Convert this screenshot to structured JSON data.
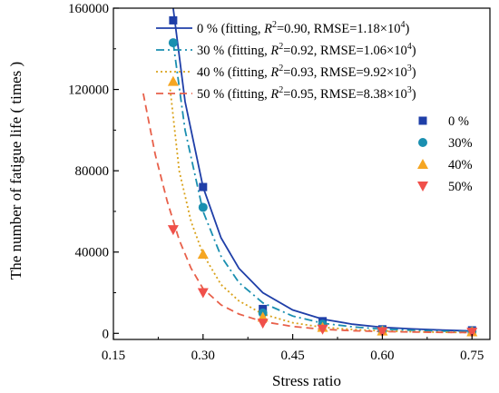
{
  "chart_data": {
    "type": "scatter",
    "xlabel": "Stress ratio",
    "ylabel": "The number of fatigue life ( times )",
    "xlim": [
      0.15,
      0.78
    ],
    "ylim": [
      -3000,
      160000
    ],
    "xticks": [
      0.15,
      0.3,
      0.45,
      0.6,
      0.75
    ],
    "xtick_labels": [
      "0.15",
      "0.30",
      "0.45",
      "0.60",
      "0.75"
    ],
    "yticks": [
      0,
      40000,
      80000,
      120000,
      160000
    ],
    "ytick_labels": [
      "0",
      "40000",
      "80000",
      "120000",
      "160000"
    ],
    "grid": false,
    "legend_placement": "top-right",
    "series": [
      {
        "name": "0 %",
        "marker": "square",
        "color": "#1f3fa8",
        "x": [
          0.25,
          0.3,
          0.4,
          0.5,
          0.6,
          0.75
        ],
        "y": [
          154000,
          72000,
          12000,
          6000,
          2000,
          1500
        ],
        "fit": {
          "label": "0 % (fitting, R2=0.90, RMSE=1.18×104)",
          "label_parts": [
            "0 % (fitting, ",
            "R",
            "2",
            "=0.90, RMSE=1.18×10",
            "4",
            ")"
          ],
          "style": "solid",
          "color": "#1f3fa8",
          "x": [
            0.25,
            0.27,
            0.3,
            0.33,
            0.36,
            0.4,
            0.45,
            0.5,
            0.55,
            0.6,
            0.65,
            0.7,
            0.75
          ],
          "y": [
            160000,
            114000,
            72000,
            47000,
            32000,
            20000,
            11500,
            7000,
            4500,
            3000,
            2200,
            1600,
            1200
          ]
        }
      },
      {
        "name": "30%",
        "marker": "circle",
        "color": "#1a8fb0",
        "x": [
          0.25,
          0.3,
          0.4,
          0.5,
          0.6,
          0.75
        ],
        "y": [
          143000,
          62000,
          10000,
          4500,
          1500,
          1000
        ],
        "fit": {
          "label": "30 % (fitting, R2=0.92, RMSE=1.06×104)",
          "label_parts": [
            "30 % (fitting, ",
            "R",
            "2",
            "=0.92, RMSE=1.06×10",
            "4",
            ")"
          ],
          "style": "dashdot",
          "color": "#1a8fb0",
          "x": [
            0.25,
            0.27,
            0.3,
            0.33,
            0.36,
            0.4,
            0.45,
            0.5,
            0.55,
            0.6,
            0.65,
            0.7,
            0.75
          ],
          "y": [
            143000,
            100000,
            60000,
            38000,
            25000,
            15000,
            8500,
            5000,
            3200,
            2100,
            1500,
            1100,
            800
          ]
        }
      },
      {
        "name": "40%",
        "marker": "triangle-up",
        "color": "#f5a623",
        "x": [
          0.25,
          0.3,
          0.4,
          0.5,
          0.6,
          0.75
        ],
        "y": [
          124000,
          39000,
          8000,
          3000,
          1200,
          800
        ],
        "fit": {
          "label": "40 % (fitting, R2=0.93, RMSE=9.92×103)",
          "label_parts": [
            "40 % (fitting, ",
            "R",
            "2",
            "=0.93, RMSE=9.92×10",
            "3",
            ")"
          ],
          "style": "dotted",
          "color": "#d9a21b",
          "x": [
            0.245,
            0.26,
            0.28,
            0.3,
            0.33,
            0.36,
            0.4,
            0.45,
            0.5,
            0.55,
            0.6,
            0.65,
            0.7,
            0.75
          ],
          "y": [
            120000,
            80000,
            55000,
            39000,
            24000,
            16000,
            9500,
            5200,
            3000,
            1900,
            1200,
            800,
            550,
            400
          ]
        }
      },
      {
        "name": "50%",
        "marker": "triangle-down",
        "color": "#f0504a",
        "x": [
          0.25,
          0.3,
          0.4,
          0.5,
          0.6,
          0.75
        ],
        "y": [
          51000,
          20000,
          5000,
          2000,
          800,
          500
        ],
        "fit": {
          "label": "50 % (fitting, R2=0.95, RMSE=8.38×103)",
          "label_parts": [
            "50 % (fitting, ",
            "R",
            "2",
            "=0.95, RMSE=8.38×10",
            "3",
            ")"
          ],
          "style": "dashed",
          "color": "#e8604a",
          "x": [
            0.2,
            0.22,
            0.24,
            0.26,
            0.28,
            0.3,
            0.33,
            0.36,
            0.4,
            0.45,
            0.5,
            0.55,
            0.6,
            0.65,
            0.7,
            0.75
          ],
          "y": [
            118000,
            88000,
            65000,
            46000,
            32000,
            22000,
            14000,
            9500,
            5800,
            3400,
            2000,
            1300,
            900,
            650,
            500,
            400
          ]
        }
      }
    ]
  }
}
